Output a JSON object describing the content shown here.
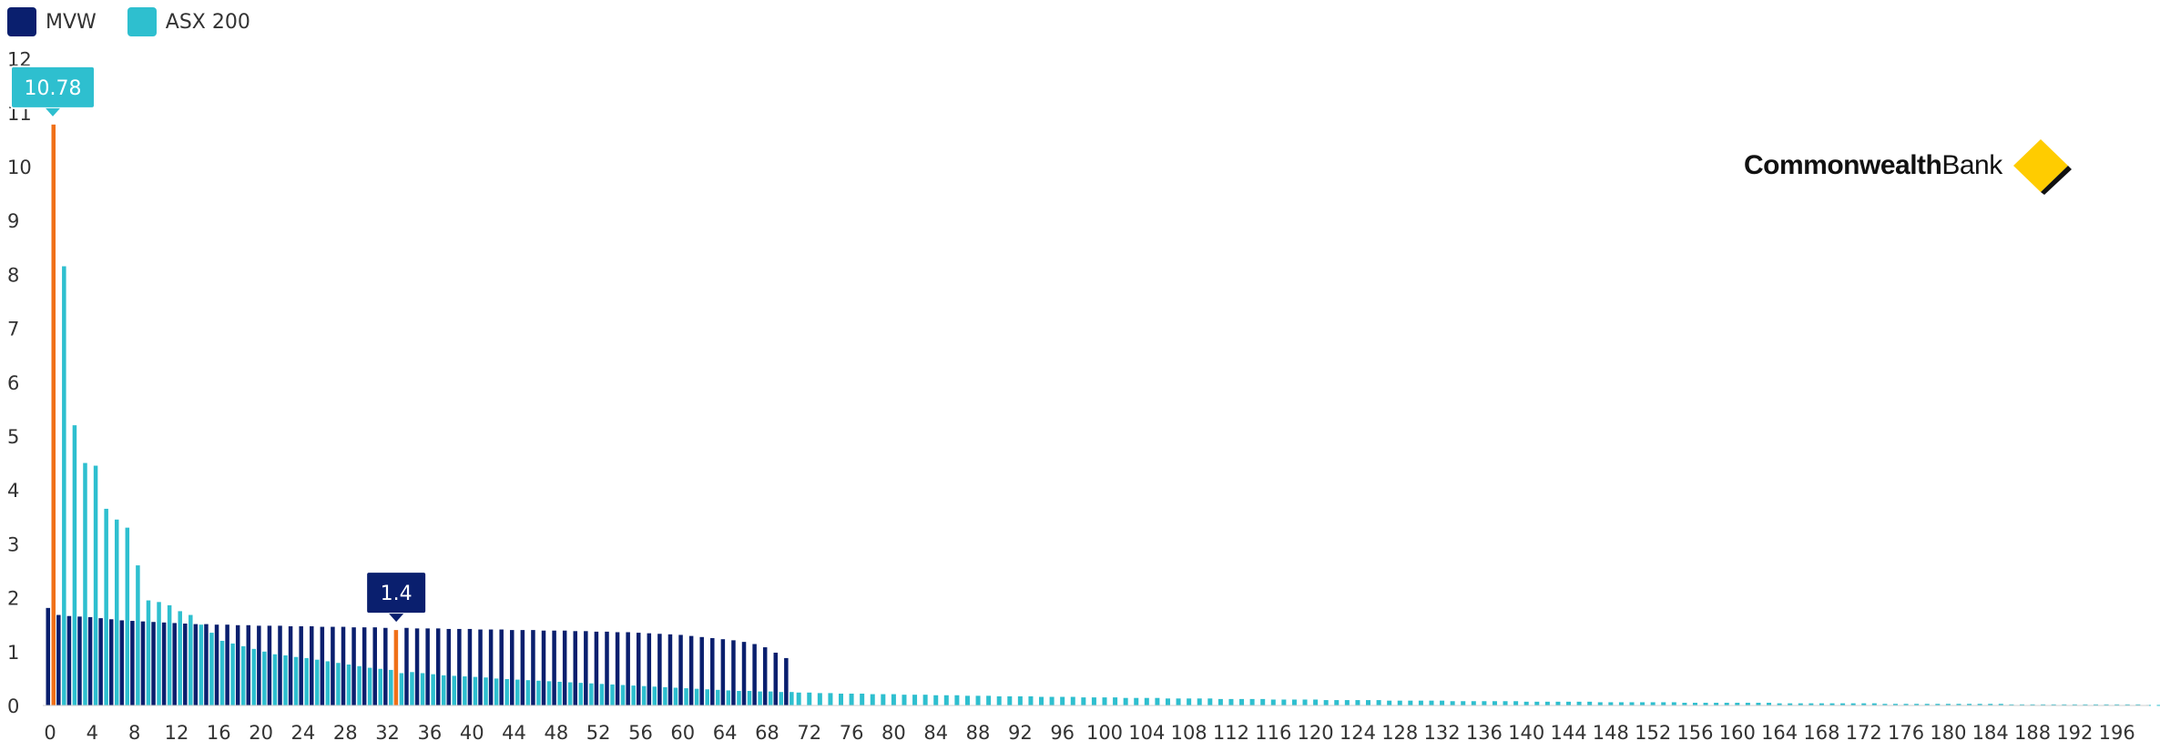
{
  "chart_data": {
    "type": "bar",
    "series": [
      {
        "name": "MVW",
        "color": "#0a1f6e",
        "values": [
          1.81,
          1.68,
          1.66,
          1.65,
          1.64,
          1.62,
          1.6,
          1.58,
          1.57,
          1.56,
          1.55,
          1.54,
          1.53,
          1.52,
          1.51,
          1.51,
          1.5,
          1.5,
          1.49,
          1.49,
          1.48,
          1.48,
          1.48,
          1.47,
          1.47,
          1.47,
          1.46,
          1.46,
          1.46,
          1.45,
          1.45,
          1.45,
          1.44,
          1.4,
          1.44,
          1.43,
          1.43,
          1.43,
          1.42,
          1.42,
          1.42,
          1.41,
          1.41,
          1.41,
          1.4,
          1.4,
          1.4,
          1.39,
          1.39,
          1.39,
          1.38,
          1.38,
          1.37,
          1.37,
          1.36,
          1.36,
          1.35,
          1.34,
          1.33,
          1.32,
          1.31,
          1.29,
          1.27,
          1.25,
          1.23,
          1.21,
          1.18,
          1.14,
          1.08,
          0.98,
          0.88
        ]
      },
      {
        "name": "ASX 200",
        "color": "#2ebfcf",
        "values": [
          10.78,
          8.15,
          5.2,
          4.5,
          4.45,
          3.65,
          3.45,
          3.3,
          2.6,
          1.95,
          1.92,
          1.86,
          1.75,
          1.68,
          1.5,
          1.35,
          1.2,
          1.15,
          1.1,
          1.05,
          1.0,
          0.95,
          0.93,
          0.9,
          0.88,
          0.85,
          0.82,
          0.79,
          0.76,
          0.73,
          0.7,
          0.68,
          0.66,
          0.6,
          0.62,
          0.6,
          0.58,
          0.56,
          0.55,
          0.54,
          0.53,
          0.52,
          0.5,
          0.49,
          0.48,
          0.47,
          0.46,
          0.45,
          0.44,
          0.43,
          0.42,
          0.41,
          0.4,
          0.39,
          0.38,
          0.37,
          0.36,
          0.35,
          0.34,
          0.33,
          0.32,
          0.31,
          0.3,
          0.29,
          0.28,
          0.27,
          0.27,
          0.26,
          0.26,
          0.25,
          0.25,
          0.24,
          0.24,
          0.23,
          0.23,
          0.22,
          0.22,
          0.22,
          0.21,
          0.21,
          0.21,
          0.2,
          0.2,
          0.2,
          0.19,
          0.19,
          0.19,
          0.18,
          0.18,
          0.18,
          0.17,
          0.17,
          0.17,
          0.17,
          0.16,
          0.16,
          0.16,
          0.16,
          0.15,
          0.15,
          0.15,
          0.15,
          0.14,
          0.14,
          0.14,
          0.14,
          0.13,
          0.13,
          0.13,
          0.13,
          0.13,
          0.12,
          0.12,
          0.12,
          0.12,
          0.12,
          0.11,
          0.11,
          0.11,
          0.11,
          0.11,
          0.1,
          0.1,
          0.1,
          0.1,
          0.1,
          0.1,
          0.09,
          0.09,
          0.09,
          0.09,
          0.09,
          0.09,
          0.08,
          0.08,
          0.08,
          0.08,
          0.08,
          0.08,
          0.08,
          0.07,
          0.07,
          0.07,
          0.07,
          0.07,
          0.07,
          0.07,
          0.06,
          0.06,
          0.06,
          0.06,
          0.06,
          0.06,
          0.06,
          0.06,
          0.05,
          0.05,
          0.05,
          0.05,
          0.05,
          0.05,
          0.05,
          0.05,
          0.05,
          0.04,
          0.04,
          0.04,
          0.04,
          0.04,
          0.04,
          0.04,
          0.04,
          0.04,
          0.04,
          0.03,
          0.03,
          0.03,
          0.03,
          0.03,
          0.03,
          0.03,
          0.03,
          0.03,
          0.03,
          0.03,
          0.03,
          0.02,
          0.02,
          0.02,
          0.02,
          0.02,
          0.02,
          0.02,
          0.02,
          0.02,
          0.02,
          0.02,
          0.02,
          0.02,
          0.01,
          0.01,
          0.01,
          0.01
        ]
      }
    ],
    "x_count": 200,
    "ylim": [
      0,
      12
    ],
    "y_ticks": [
      "0",
      "1",
      "2",
      "3",
      "4",
      "5",
      "6",
      "7",
      "8",
      "9",
      "10",
      "11",
      "12"
    ],
    "x_ticks": [
      "0",
      "4",
      "8",
      "12",
      "16",
      "20",
      "24",
      "28",
      "32",
      "36",
      "40",
      "44",
      "48",
      "52",
      "56",
      "60",
      "64",
      "68",
      "72",
      "76",
      "80",
      "84",
      "88",
      "92",
      "96",
      "100",
      "104",
      "108",
      "112",
      "116",
      "120",
      "124",
      "128",
      "132",
      "136",
      "140",
      "144",
      "148",
      "152",
      "156",
      "160",
      "164",
      "168",
      "172",
      "176",
      "180",
      "184",
      "188",
      "192",
      "196"
    ],
    "highlights": [
      {
        "series": "ASX 200",
        "index": 0,
        "label": "10.78",
        "color": "#2ebfcf"
      },
      {
        "series": "MVW",
        "index": 33,
        "label": "1.4",
        "color": "#0a1f6e"
      }
    ],
    "highlight_color": "#f07018",
    "legend_position": "top-left",
    "grid": false
  },
  "logo": {
    "bold": "Commonwealth",
    "light": "Bank",
    "alt": "CommonwealthBank"
  }
}
